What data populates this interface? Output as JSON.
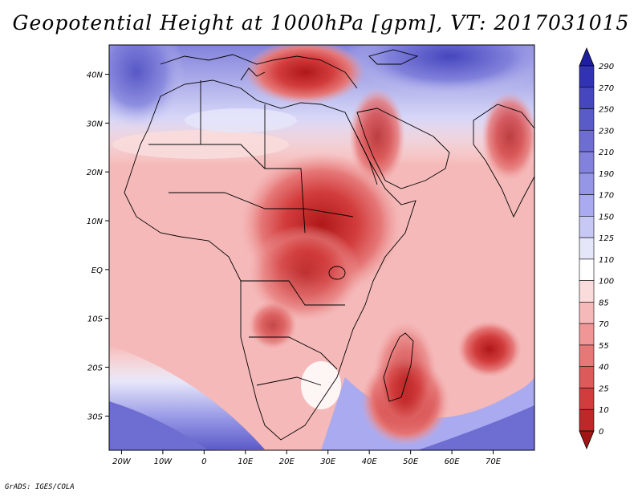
{
  "title": "Geopotential Height at 1000hPa [gpm], VT: 2017031015",
  "credit": "GrADS: IGES/COLA",
  "map": {
    "lon_range": [
      -23,
      80
    ],
    "lat_range": [
      -37,
      46
    ],
    "lon_ticks": [
      {
        "value": -20,
        "label": "20W"
      },
      {
        "value": -10,
        "label": "10W"
      },
      {
        "value": 0,
        "label": "0"
      },
      {
        "value": 10,
        "label": "10E"
      },
      {
        "value": 20,
        "label": "20E"
      },
      {
        "value": 30,
        "label": "30E"
      },
      {
        "value": 40,
        "label": "40E"
      },
      {
        "value": 50,
        "label": "50E"
      },
      {
        "value": 60,
        "label": "60E"
      },
      {
        "value": 70,
        "label": "70E"
      }
    ],
    "lat_ticks": [
      {
        "value": 40,
        "label": "40N"
      },
      {
        "value": 30,
        "label": "30N"
      },
      {
        "value": 20,
        "label": "20N"
      },
      {
        "value": 10,
        "label": "10N"
      },
      {
        "value": 0,
        "label": "EQ"
      },
      {
        "value": -10,
        "label": "10S"
      },
      {
        "value": -20,
        "label": "20S"
      },
      {
        "value": -30,
        "label": "30S"
      }
    ]
  },
  "colorbar": {
    "labels_top_to_bottom": [
      "290",
      "270",
      "250",
      "230",
      "210",
      "190",
      "170",
      "150",
      "125",
      "110",
      "100",
      "85",
      "70",
      "55",
      "40",
      "25",
      "10",
      "0"
    ],
    "colors_top_to_bottom": [
      "#1e1ea0",
      "#3232b4",
      "#4646be",
      "#5a5ac8",
      "#6e6ed2",
      "#8282dc",
      "#9696e6",
      "#aaaaf0",
      "#c8c8f5",
      "#e6e6fa",
      "#ffffff",
      "#fadcdc",
      "#f5b9b9",
      "#f09696",
      "#e67878",
      "#dc5a5a",
      "#d23c3c",
      "#be2828",
      "#a01414"
    ]
  }
}
